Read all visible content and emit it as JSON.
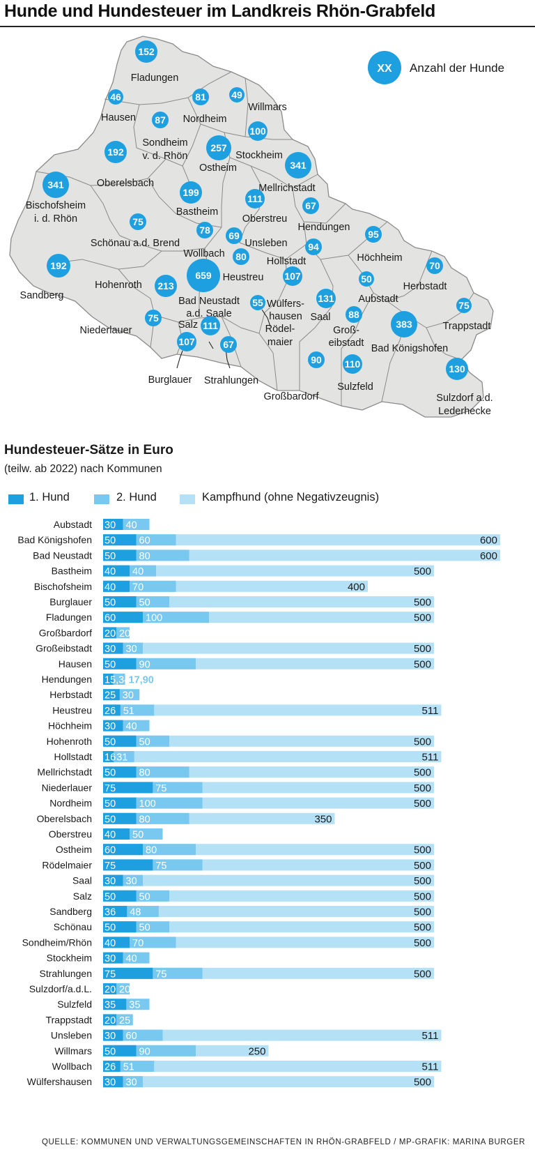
{
  "title": "Hunde und Hundesteuer im Landkreis Rhön-Grabfeld",
  "map": {
    "legend_symbol": "XX",
    "legend_label": "Anzahl der Hunde",
    "colors": {
      "region_fill": "#e3e3e1",
      "region_stroke": "#8a8a8a",
      "circle": "#1e9fe0"
    },
    "places": [
      {
        "name": "Fladungen",
        "dogs": 152
      },
      {
        "name": "Hausen",
        "dogs": 46
      },
      {
        "name": "Nordheim",
        "dogs": 81
      },
      {
        "name": "Willmars",
        "dogs": 49
      },
      {
        "name": "Sondheim v. d. Rhön",
        "dogs": 87
      },
      {
        "name": "Stockheim",
        "dogs": 100
      },
      {
        "name": "Oberelsbach",
        "dogs": 192
      },
      {
        "name": "Ostheim",
        "dogs": 257
      },
      {
        "name": "Mellrichstadt",
        "dogs": 341
      },
      {
        "name": "Bischofsheim i. d. Rhön",
        "dogs": 341
      },
      {
        "name": "Bastheim",
        "dogs": 199
      },
      {
        "name": "Oberstreu",
        "dogs": 111
      },
      {
        "name": "Hendungen",
        "dogs": 67
      },
      {
        "name": "Schönau a.d. Brend",
        "dogs": 75
      },
      {
        "name": "Wollbach",
        "dogs": 78
      },
      {
        "name": "Unsleben",
        "dogs": 69
      },
      {
        "name": "Höchheim",
        "dogs": 95
      },
      {
        "name": "Hollstadt",
        "dogs": 94
      },
      {
        "name": "Heustreu",
        "dogs": 80
      },
      {
        "name": "Sandberg",
        "dogs": 192
      },
      {
        "name": "Hohenroth",
        "dogs": 213
      },
      {
        "name": "Bad Neustadt a.d. Saale",
        "dogs": 659
      },
      {
        "name": "Herbstadt",
        "dogs": 70
      },
      {
        "name": "Aubstadt",
        "dogs": 50
      },
      {
        "name": "Wülfershausen",
        "dogs": 107
      },
      {
        "name": "Saal",
        "dogs": 131
      },
      {
        "name": "Trappstadt",
        "dogs": 75
      },
      {
        "name": "Rödelmaier",
        "dogs": 55
      },
      {
        "name": "Niederlauer",
        "dogs": 75
      },
      {
        "name": "Salz",
        "dogs": 111
      },
      {
        "name": "Großeibstadt",
        "dogs": 88
      },
      {
        "name": "Bad Königshofen",
        "dogs": 383
      },
      {
        "name": "Burglauer",
        "dogs": 107
      },
      {
        "name": "Strahlungen",
        "dogs": 67
      },
      {
        "name": "Großbardorf",
        "dogs": 90
      },
      {
        "name": "Sulzfeld",
        "dogs": 110
      },
      {
        "name": "Sulzdorf a.d. Lederhecke",
        "dogs": 130
      }
    ]
  },
  "chart_data": {
    "type": "bar",
    "title": "Hundesteuer-Sätze in Euro",
    "subtitle": "(teilw. ab 2022) nach Kommunen",
    "unit": "Euro",
    "xlim": [
      0,
      600
    ],
    "grid": false,
    "legend_position": "top-left",
    "series": [
      {
        "name": "1. Hund",
        "color": "#1e9fe0"
      },
      {
        "name": "2. Hund",
        "color": "#79c8ef"
      },
      {
        "name": "Kampfhund (ohne Negativzeugnis)",
        "color": "#b5e1f7"
      }
    ],
    "rows": [
      {
        "name": "Aubstadt",
        "v1": 30,
        "v2": 40,
        "v3": null
      },
      {
        "name": "Bad Königshofen",
        "v1": 50,
        "v2": 60,
        "v3": 600
      },
      {
        "name": "Bad Neustadt",
        "v1": 50,
        "v2": 80,
        "v3": 600
      },
      {
        "name": "Bastheim",
        "v1": 40,
        "v2": 40,
        "v3": 500
      },
      {
        "name": "Bischofsheim",
        "v1": 40,
        "v2": 70,
        "v3": 400
      },
      {
        "name": "Burglauer",
        "v1": 50,
        "v2": 50,
        "v3": 500
      },
      {
        "name": "Fladungen",
        "v1": 60,
        "v2": 100,
        "v3": 500
      },
      {
        "name": "Großbardorf",
        "v1": 20,
        "v2": 20,
        "v3": null
      },
      {
        "name": "Großeibstadt",
        "v1": 30,
        "v2": 30,
        "v3": 500
      },
      {
        "name": "Hausen",
        "v1": 50,
        "v2": 90,
        "v3": 500
      },
      {
        "name": "Hendungen",
        "v1": 15.34,
        "v2": 17.9,
        "v3": null,
        "l1": "15,34",
        "l2": "17,90"
      },
      {
        "name": "Herbstadt",
        "v1": 25,
        "v2": 30,
        "v3": null
      },
      {
        "name": "Heustreu",
        "v1": 26,
        "v2": 51,
        "v3": 511
      },
      {
        "name": "Höchheim",
        "v1": 30,
        "v2": 40,
        "v3": null
      },
      {
        "name": "Hohenroth",
        "v1": 50,
        "v2": 50,
        "v3": 500
      },
      {
        "name": "Hollstadt",
        "v1": 16,
        "v2": 31,
        "v3": 511
      },
      {
        "name": "Mellrichstadt",
        "v1": 50,
        "v2": 80,
        "v3": 500
      },
      {
        "name": "Niederlauer",
        "v1": 75,
        "v2": 75,
        "v3": 500
      },
      {
        "name": "Nordheim",
        "v1": 50,
        "v2": 100,
        "v3": 500
      },
      {
        "name": "Oberelsbach",
        "v1": 50,
        "v2": 80,
        "v3": 350
      },
      {
        "name": "Oberstreu",
        "v1": 40,
        "v2": 50,
        "v3": null
      },
      {
        "name": "Ostheim",
        "v1": 60,
        "v2": 80,
        "v3": 500
      },
      {
        "name": "Rödelmaier",
        "v1": 75,
        "v2": 75,
        "v3": 500
      },
      {
        "name": "Saal",
        "v1": 30,
        "v2": 30,
        "v3": 500
      },
      {
        "name": "Salz",
        "v1": 50,
        "v2": 50,
        "v3": 500
      },
      {
        "name": "Sandberg",
        "v1": 36,
        "v2": 48,
        "v3": 500
      },
      {
        "name": "Schönau",
        "v1": 50,
        "v2": 50,
        "v3": 500
      },
      {
        "name": "Sondheim/Rhön",
        "v1": 40,
        "v2": 70,
        "v3": 500
      },
      {
        "name": "Stockheim",
        "v1": 30,
        "v2": 40,
        "v3": null
      },
      {
        "name": "Strahlungen",
        "v1": 75,
        "v2": 75,
        "v3": 500
      },
      {
        "name": "Sulzdorf/a.d.L.",
        "v1": 20,
        "v2": 20,
        "v3": null
      },
      {
        "name": "Sulzfeld",
        "v1": 35,
        "v2": 35,
        "v3": null
      },
      {
        "name": "Trappstadt",
        "v1": 20,
        "v2": 25,
        "v3": null
      },
      {
        "name": "Unsleben",
        "v1": 30,
        "v2": 60,
        "v3": 511
      },
      {
        "name": "Willmars",
        "v1": 50,
        "v2": 90,
        "v3": 250
      },
      {
        "name": "Wollbach",
        "v1": 26,
        "v2": 51,
        "v3": 511
      },
      {
        "name": "Wülfershausen",
        "v1": 30,
        "v2": 30,
        "v3": 500
      }
    ]
  },
  "source": "QUELLE: KOMMUNEN UND VERWALTUNGSGEMEINSCHAFTEN IN RHÖN-GRABFELD / MP-GRAFIK: MARINA BURGER"
}
